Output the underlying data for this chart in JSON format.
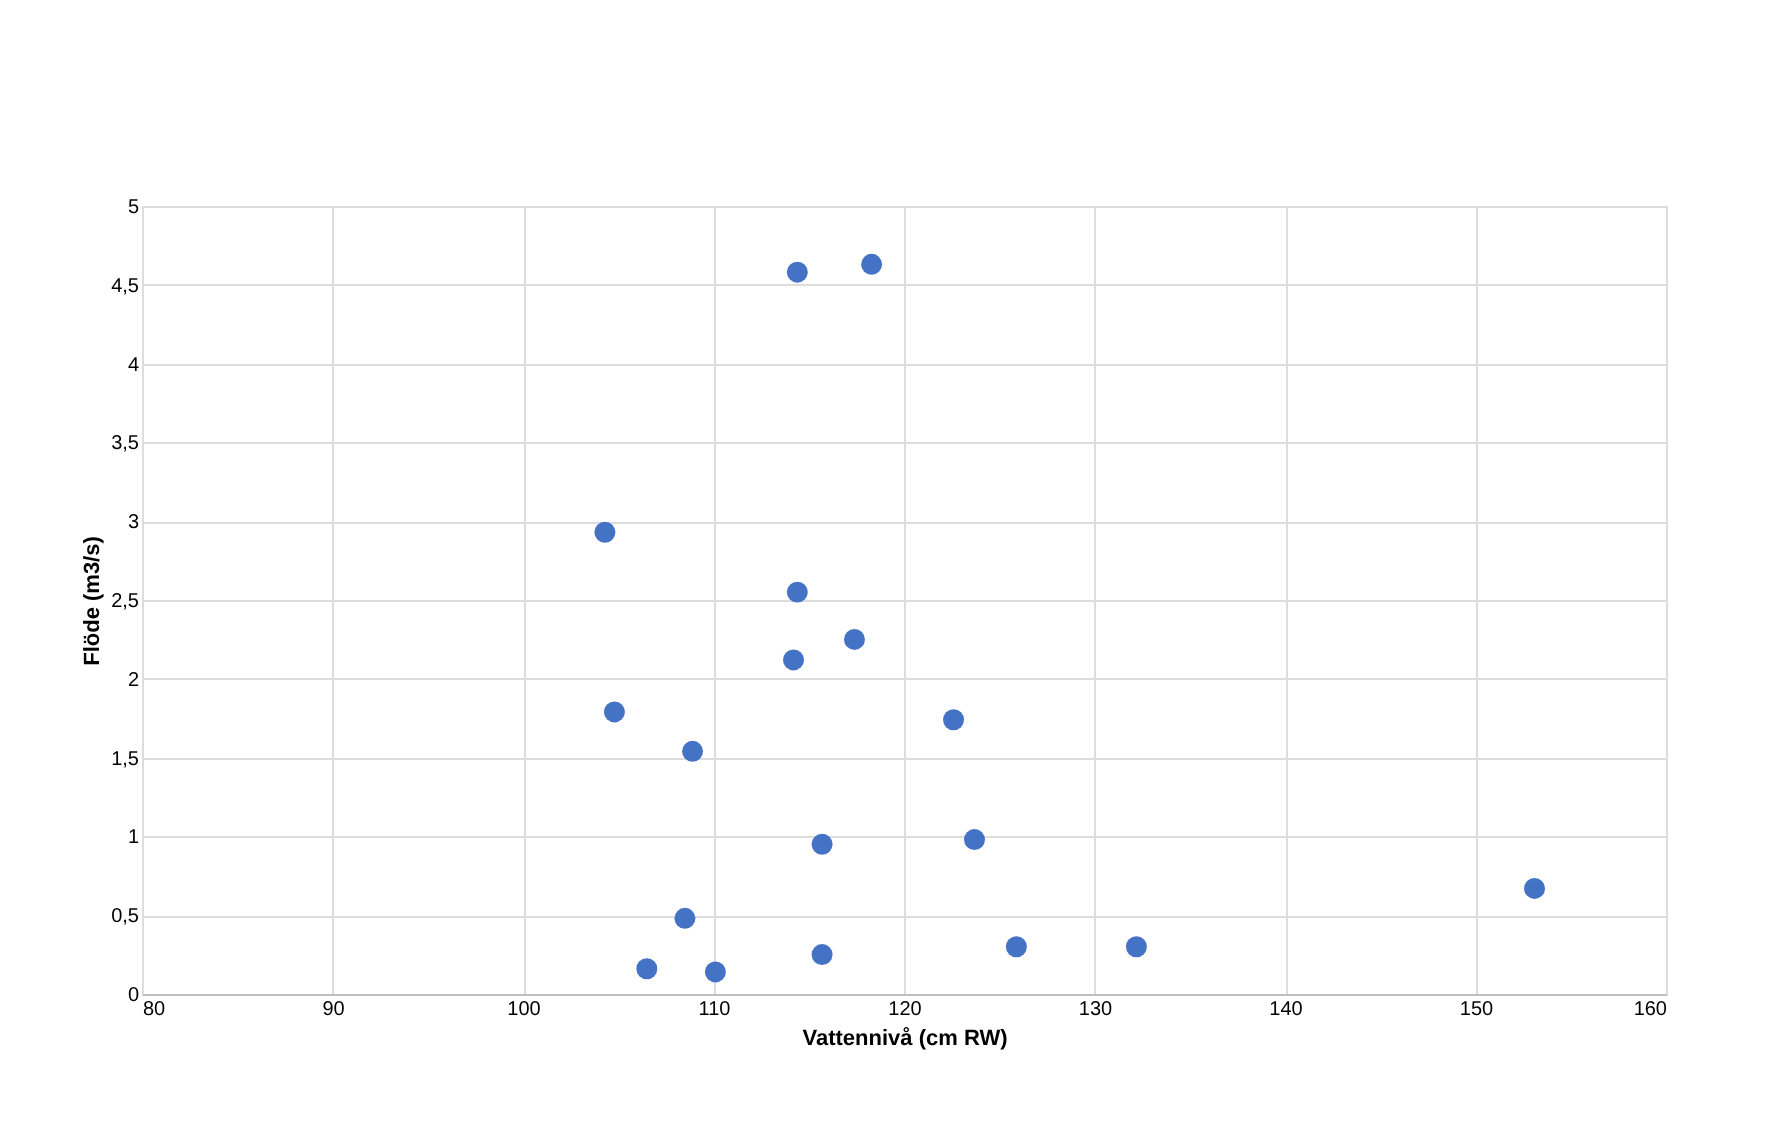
{
  "chart_data": {
    "type": "scatter",
    "xlabel": "Vattennivå (cm RW)",
    "ylabel": "Flöde (m3/s)",
    "xlim": [
      80,
      160
    ],
    "xticks": [
      80,
      90,
      100,
      110,
      120,
      130,
      140,
      150,
      160
    ],
    "ylim": [
      0,
      5
    ],
    "yticks": [
      0,
      {
        "value": 0.5,
        "label": "0,5"
      },
      1,
      {
        "value": 1.5,
        "label": "1,5"
      },
      2,
      {
        "value": 2.5,
        "label": "2,5"
      },
      3,
      {
        "value": 3.5,
        "label": "3,5"
      },
      4,
      {
        "value": 4.5,
        "label": "4,5"
      },
      5
    ],
    "grid": true,
    "marker": "circle",
    "series": [
      {
        "color": "#4472c4",
        "x": [
          114.4,
          118.3,
          104.3,
          114.4,
          117.4,
          114.2,
          104.8,
          122.6,
          108.9,
          115.7,
          123.7,
          153.1,
          108.5,
          115.7,
          125.9,
          132.2,
          106.5,
          110.1
        ],
        "values": [
          4.58,
          4.63,
          2.93,
          2.55,
          2.25,
          2.12,
          1.79,
          1.74,
          1.54,
          0.95,
          0.98,
          0.67,
          0.48,
          0.25,
          0.3,
          0.3,
          0.16,
          0.14
        ]
      }
    ]
  }
}
